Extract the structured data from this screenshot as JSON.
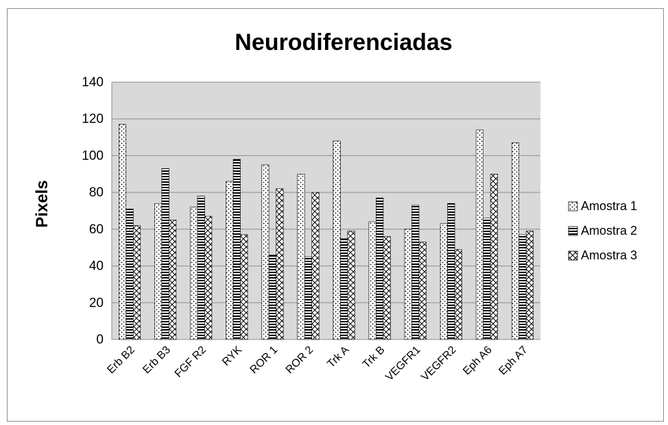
{
  "chart_data": {
    "type": "bar",
    "title": "Neurodiferenciadas",
    "xlabel": "",
    "ylabel": "Pixels",
    "ylim": [
      0,
      140
    ],
    "yticks": [
      "0",
      "20",
      "40",
      "60",
      "80",
      "100",
      "120",
      "140"
    ],
    "grid": true,
    "legend_position": "right",
    "categories": [
      "Erb B2",
      "Erb B3",
      "FGF R2",
      "RYK",
      "ROR 1",
      "ROR 2",
      "Trk A",
      "Trk B",
      "VEGFR1",
      "VEGFR2",
      "Eph A6",
      "Eph A7"
    ],
    "series": [
      {
        "name": "Amostra 1",
        "pattern": "dots",
        "values": [
          117,
          74,
          72,
          86,
          95,
          90,
          108,
          64,
          60,
          63,
          114,
          107
        ]
      },
      {
        "name": "Amostra 2",
        "pattern": "horizontal-lines",
        "values": [
          71,
          93,
          78,
          98,
          46,
          45,
          55,
          77,
          73,
          74,
          66,
          57
        ]
      },
      {
        "name": "Amostra 3",
        "pattern": "crosshatch",
        "values": [
          62,
          65,
          67,
          57,
          82,
          80,
          59,
          56,
          53,
          49,
          90,
          59
        ]
      }
    ],
    "colors": {
      "plot_background": "#d9d9d9",
      "gridline": "#8c8c8c",
      "bar_fill": "#ffffff",
      "bar_stroke": "#000000"
    }
  }
}
